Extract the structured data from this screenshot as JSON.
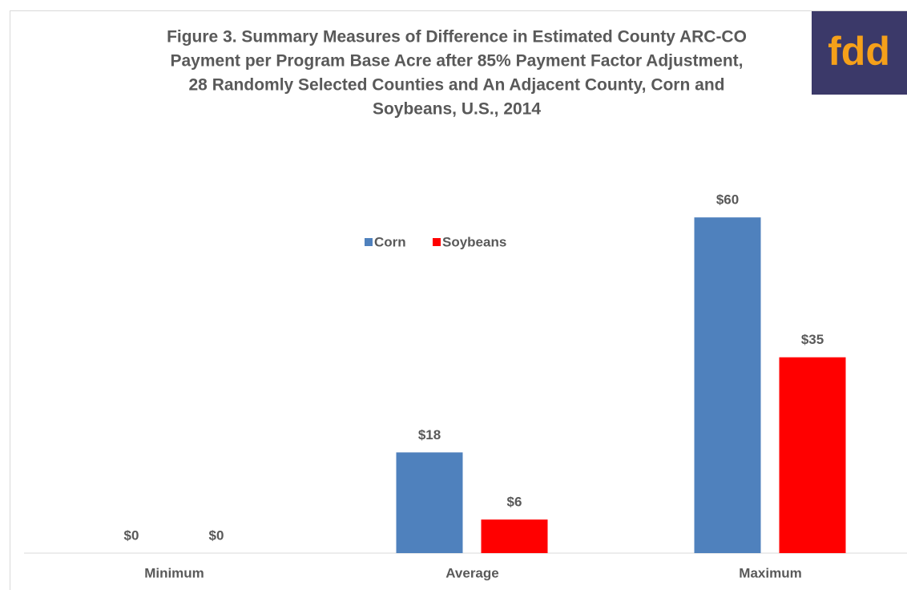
{
  "chart_data": {
    "type": "bar",
    "title": [
      "Figure 3. Summary Measures of Difference in Estimated County ARC-CO",
      "Payment per Program Base Acre after 85% Payment Factor Adjustment,",
      "28 Randomly Selected Counties and An Adjacent County, Corn and",
      "Soybeans, U.S., 2014"
    ],
    "logo": "fdd",
    "categories": [
      "Minimum",
      "Average",
      "Maximum"
    ],
    "series": [
      {
        "name": "Corn",
        "color": "#4f81bd",
        "values": [
          0,
          18,
          60
        ],
        "value_labels": [
          "$0",
          "$18",
          "$60"
        ]
      },
      {
        "name": "Soybeans",
        "color": "#ff0000",
        "values": [
          0,
          6,
          35
        ],
        "value_labels": [
          "$0",
          "$6",
          "$35"
        ]
      }
    ]
  }
}
